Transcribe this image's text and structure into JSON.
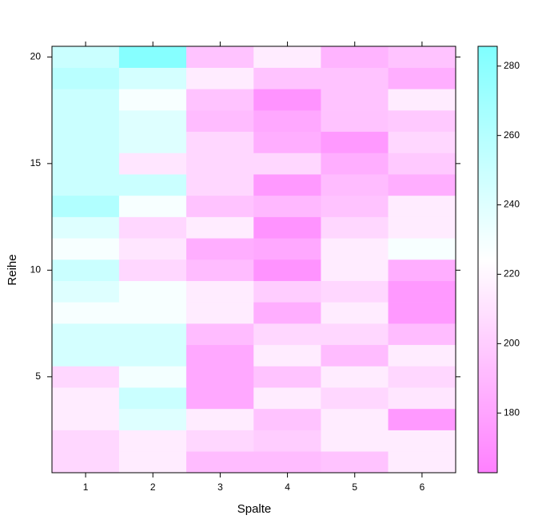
{
  "chart_data": {
    "type": "heatmap",
    "x_label": "Spalte",
    "y_label": "Reihe",
    "x": [
      1,
      2,
      3,
      4,
      5,
      6
    ],
    "y": [
      1,
      2,
      3,
      4,
      5,
      6,
      7,
      8,
      9,
      10,
      11,
      12,
      13,
      14,
      15,
      16,
      17,
      18,
      19,
      20
    ],
    "xlim": [
      0.5,
      6.5
    ],
    "ylim": [
      0.5,
      20.5
    ],
    "xticks": [
      1,
      2,
      3,
      4,
      5,
      6
    ],
    "yticks": [
      5,
      10,
      15,
      20
    ],
    "values": [
      [
        205,
        215,
        192,
        192,
        195,
        215
      ],
      [
        205,
        215,
        205,
        200,
        215,
        215
      ],
      [
        215,
        240,
        215,
        195,
        215,
        175
      ],
      [
        215,
        250,
        182,
        215,
        205,
        212
      ],
      [
        205,
        230,
        182,
        195,
        215,
        205
      ],
      [
        245,
        245,
        182,
        215,
        192,
        215
      ],
      [
        245,
        245,
        192,
        205,
        205,
        192
      ],
      [
        228,
        228,
        215,
        185,
        215,
        175
      ],
      [
        240,
        228,
        215,
        200,
        205,
        175
      ],
      [
        250,
        205,
        192,
        172,
        215,
        185
      ],
      [
        228,
        212,
        185,
        182,
        215,
        228
      ],
      [
        240,
        205,
        215,
        172,
        205,
        215
      ],
      [
        262,
        228,
        195,
        190,
        195,
        215
      ],
      [
        250,
        250,
        205,
        175,
        192,
        185
      ],
      [
        250,
        212,
        205,
        205,
        185,
        198
      ],
      [
        250,
        240,
        205,
        185,
        175,
        205
      ],
      [
        250,
        240,
        192,
        182,
        195,
        198
      ],
      [
        250,
        228,
        195,
        172,
        195,
        215
      ],
      [
        258,
        245,
        215,
        195,
        195,
        185
      ],
      [
        250,
        283,
        195,
        215,
        188,
        195
      ]
    ],
    "zlim": [
      162.8,
      285.7
    ],
    "zticks": [
      180,
      200,
      220,
      240,
      260,
      280
    ],
    "colors": [
      "#ff80ff",
      "#ffffff",
      "#80ffff"
    ]
  }
}
